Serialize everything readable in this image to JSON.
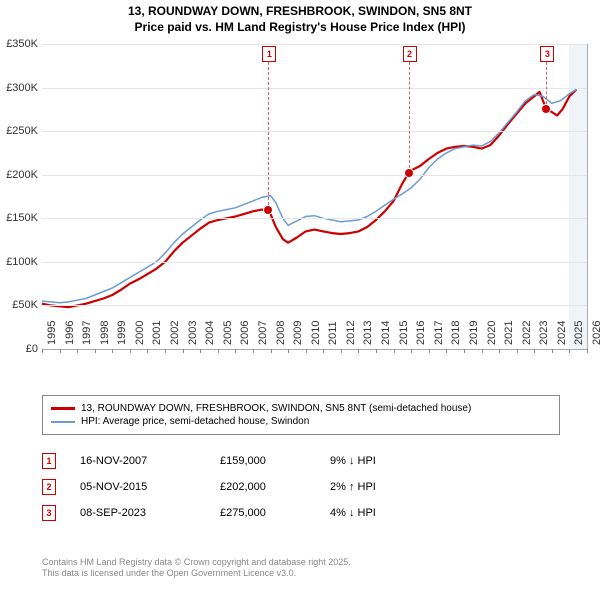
{
  "title_line1": "13, ROUNDWAY DOWN, FRESHBROOK, SWINDON, SN5 8NT",
  "title_line2": "Price paid vs. HM Land Registry's House Price Index (HPI)",
  "chart": {
    "type": "line",
    "background_color": "#ffffff",
    "grid_color": "#e5e5e5",
    "axis_color": "#aaaaaa",
    "x_min": 1995,
    "x_max": 2026,
    "y_min": 0,
    "y_max": 350,
    "y_ticks": [
      0,
      50,
      100,
      150,
      200,
      250,
      300,
      350
    ],
    "y_tick_labels": [
      "£0",
      "£50K",
      "£100K",
      "£150K",
      "£200K",
      "£250K",
      "£300K",
      "£350K"
    ],
    "x_ticks": [
      1995,
      1996,
      1997,
      1998,
      1999,
      2000,
      2001,
      2002,
      2003,
      2004,
      2005,
      2006,
      2007,
      2008,
      2009,
      2010,
      2011,
      2012,
      2013,
      2014,
      2015,
      2016,
      2017,
      2018,
      2019,
      2020,
      2021,
      2022,
      2023,
      2024,
      2025,
      2026
    ],
    "last_tick_glow_year": 2025,
    "series": [
      {
        "name": "price_paid",
        "color": "#cc0000",
        "width": 2.2,
        "data": [
          [
            1995,
            52
          ],
          [
            1995.5,
            50
          ],
          [
            1996,
            49
          ],
          [
            1996.5,
            48
          ],
          [
            1997,
            50
          ],
          [
            1997.5,
            52
          ],
          [
            1998,
            55
          ],
          [
            1998.5,
            58
          ],
          [
            1999,
            62
          ],
          [
            1999.5,
            68
          ],
          [
            2000,
            75
          ],
          [
            2000.5,
            80
          ],
          [
            2001,
            86
          ],
          [
            2001.5,
            92
          ],
          [
            2002,
            100
          ],
          [
            2002.5,
            112
          ],
          [
            2003,
            122
          ],
          [
            2003.5,
            130
          ],
          [
            2004,
            138
          ],
          [
            2004.5,
            145
          ],
          [
            2005,
            148
          ],
          [
            2005.5,
            150
          ],
          [
            2006,
            152
          ],
          [
            2006.5,
            155
          ],
          [
            2007,
            158
          ],
          [
            2007.5,
            160
          ],
          [
            2007.88,
            159
          ],
          [
            2008,
            155
          ],
          [
            2008.3,
            140
          ],
          [
            2008.7,
            126
          ],
          [
            2009,
            122
          ],
          [
            2009.5,
            128
          ],
          [
            2010,
            135
          ],
          [
            2010.5,
            137
          ],
          [
            2011,
            135
          ],
          [
            2011.5,
            133
          ],
          [
            2012,
            132
          ],
          [
            2012.5,
            133
          ],
          [
            2013,
            135
          ],
          [
            2013.5,
            140
          ],
          [
            2014,
            148
          ],
          [
            2014.5,
            158
          ],
          [
            2015,
            170
          ],
          [
            2015.5,
            190
          ],
          [
            2015.85,
            202
          ],
          [
            2016,
            205
          ],
          [
            2016.5,
            210
          ],
          [
            2017,
            218
          ],
          [
            2017.5,
            225
          ],
          [
            2018,
            230
          ],
          [
            2018.5,
            232
          ],
          [
            2019,
            233
          ],
          [
            2019.5,
            232
          ],
          [
            2020,
            230
          ],
          [
            2020.5,
            234
          ],
          [
            2021,
            245
          ],
          [
            2021.5,
            258
          ],
          [
            2022,
            270
          ],
          [
            2022.5,
            282
          ],
          [
            2023,
            290
          ],
          [
            2023.3,
            295
          ],
          [
            2023.69,
            275
          ],
          [
            2024,
            272
          ],
          [
            2024.3,
            268
          ],
          [
            2024.6,
            275
          ],
          [
            2025,
            290
          ],
          [
            2025.4,
            298
          ]
        ]
      },
      {
        "name": "hpi",
        "color": "#6a9bd1",
        "width": 1.5,
        "data": [
          [
            1995,
            55
          ],
          [
            1995.5,
            54
          ],
          [
            1996,
            53
          ],
          [
            1996.5,
            54
          ],
          [
            1997,
            56
          ],
          [
            1997.5,
            58
          ],
          [
            1998,
            62
          ],
          [
            1998.5,
            66
          ],
          [
            1999,
            70
          ],
          [
            1999.5,
            76
          ],
          [
            2000,
            82
          ],
          [
            2000.5,
            88
          ],
          [
            2001,
            94
          ],
          [
            2001.5,
            100
          ],
          [
            2002,
            110
          ],
          [
            2002.5,
            122
          ],
          [
            2003,
            132
          ],
          [
            2003.5,
            140
          ],
          [
            2004,
            148
          ],
          [
            2004.5,
            155
          ],
          [
            2005,
            158
          ],
          [
            2005.5,
            160
          ],
          [
            2006,
            162
          ],
          [
            2006.5,
            166
          ],
          [
            2007,
            170
          ],
          [
            2007.5,
            174
          ],
          [
            2008,
            176
          ],
          [
            2008.3,
            168
          ],
          [
            2008.7,
            150
          ],
          [
            2009,
            142
          ],
          [
            2009.5,
            147
          ],
          [
            2010,
            152
          ],
          [
            2010.5,
            153
          ],
          [
            2011,
            150
          ],
          [
            2011.5,
            148
          ],
          [
            2012,
            146
          ],
          [
            2012.5,
            147
          ],
          [
            2013,
            148
          ],
          [
            2013.5,
            152
          ],
          [
            2014,
            158
          ],
          [
            2014.5,
            165
          ],
          [
            2015,
            172
          ],
          [
            2015.5,
            178
          ],
          [
            2016,
            185
          ],
          [
            2016.5,
            195
          ],
          [
            2017,
            208
          ],
          [
            2017.5,
            218
          ],
          [
            2018,
            225
          ],
          [
            2018.5,
            230
          ],
          [
            2019,
            232
          ],
          [
            2019.5,
            234
          ],
          [
            2020,
            233
          ],
          [
            2020.5,
            238
          ],
          [
            2021,
            248
          ],
          [
            2021.5,
            260
          ],
          [
            2022,
            272
          ],
          [
            2022.5,
            285
          ],
          [
            2023,
            292
          ],
          [
            2023.5,
            290
          ],
          [
            2024,
            282
          ],
          [
            2024.5,
            285
          ],
          [
            2025,
            293
          ],
          [
            2025.4,
            298
          ]
        ]
      }
    ],
    "markers": [
      {
        "n": "1",
        "year": 2007.88,
        "value": 159
      },
      {
        "n": "2",
        "year": 2015.85,
        "value": 202
      },
      {
        "n": "3",
        "year": 2023.69,
        "value": 275
      }
    ]
  },
  "legend": {
    "items": [
      {
        "color": "#cc0000",
        "width": 2,
        "label": "13, ROUNDWAY DOWN, FRESHBROOK, SWINDON, SN5 8NT (semi-detached house)"
      },
      {
        "color": "#6a9bd1",
        "width": 1,
        "label": "HPI: Average price, semi-detached house, Swindon"
      }
    ]
  },
  "sales": [
    {
      "n": "1",
      "date": "16-NOV-2007",
      "price": "£159,000",
      "hpi": "9% ↓ HPI"
    },
    {
      "n": "2",
      "date": "05-NOV-2015",
      "price": "£202,000",
      "hpi": "2% ↑ HPI"
    },
    {
      "n": "3",
      "date": "08-SEP-2023",
      "price": "£275,000",
      "hpi": "4% ↓ HPI"
    }
  ],
  "footnote_line1": "Contains HM Land Registry data © Crown copyright and database right 2025.",
  "footnote_line2": "This data is licensed under the Open Government Licence v3.0."
}
